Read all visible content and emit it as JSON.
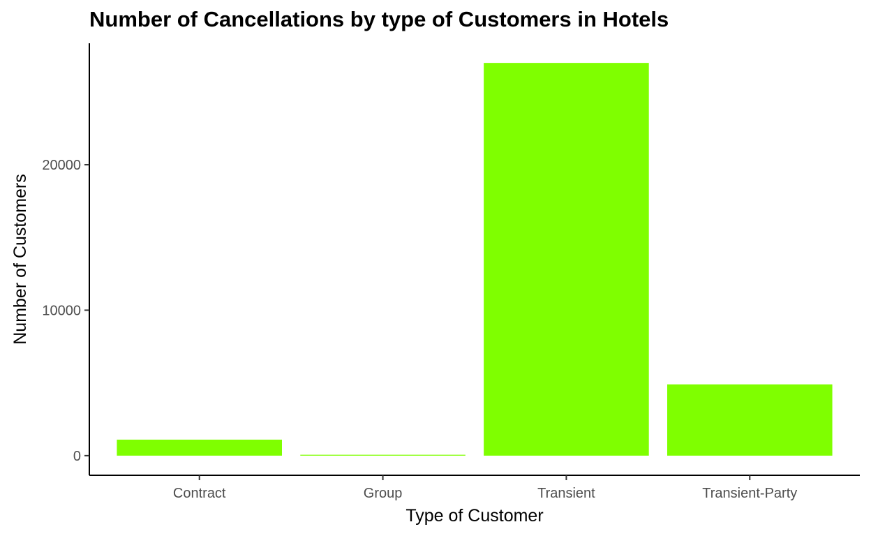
{
  "chart_data": {
    "type": "bar",
    "title": "Number of Cancellations by type of Customers in Hotels",
    "xlabel": "Type of Customer",
    "ylabel": "Number of Customers",
    "categories": [
      "Contract",
      "Group",
      "Transient",
      "Transient-Party"
    ],
    "values": [
      1100,
      60,
      27000,
      4900
    ],
    "yticks": [
      0,
      10000,
      20000
    ],
    "ylim": [
      -1350,
      28350
    ],
    "grid": false,
    "legend": "none",
    "bar_color": "#7FFF00"
  }
}
